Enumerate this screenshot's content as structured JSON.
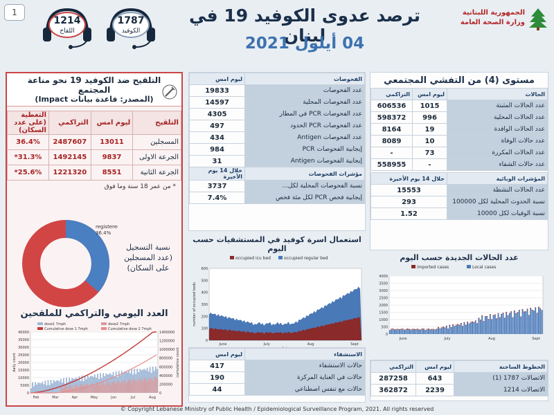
{
  "page_number": "1",
  "header": {
    "title": "ترصد عدوى الكوفيد 19 في لبنان",
    "date": "04 أيلول 2021",
    "gov_line1": "الجمهورية اللبنانية",
    "gov_line2": "وزارة الصحة العامة",
    "hotline_covid": {
      "number": "1787",
      "label": "الكوفيد"
    },
    "hotline_vaccine": {
      "number": "1214",
      "label": "اللقاح"
    }
  },
  "community": {
    "title": "مستوى (4) من التفشي المجتمعي",
    "headers": [
      "الحالات",
      "ليوم امس",
      "التراكمي"
    ],
    "rows": [
      {
        "label": "عدد الحالات المثبتة",
        "yesterday": "1015",
        "cumulative": "606536"
      },
      {
        "label": "عدد الحالات المحلية",
        "yesterday": "996",
        "cumulative": "598372"
      },
      {
        "label": "عدد الحالات الوافدة",
        "yesterday": "19",
        "cumulative": "8164"
      },
      {
        "label": "عدد حالات الوفاة",
        "yesterday": "10",
        "cumulative": "8089"
      },
      {
        "label": "عدد الحالات المكررة",
        "yesterday": "73",
        "cumulative": "-"
      },
      {
        "label": "عدد حالات الشفاء",
        "yesterday": "-",
        "cumulative": "558955"
      }
    ],
    "indicators_header": [
      "المؤشرات الوبائية",
      "خلال 14 يوم الأخيرة"
    ],
    "indicators": [
      {
        "label": "عدد الحالات النشطة",
        "value": "15553"
      },
      {
        "label": "نسبة الحدوث المحلية لكل 100000",
        "value": "293"
      },
      {
        "label": "نسبة الوفيات لكل 10000",
        "value": "1.52"
      }
    ]
  },
  "tests": {
    "headers": [
      "الفحوصات",
      "ليوم امس"
    ],
    "rows": [
      {
        "label": "عدد الفحوصات",
        "value": "19833"
      },
      {
        "label": "عدد الفحوصات المحلية",
        "value": "14597"
      },
      {
        "label": "عدد الفحوصات PCR في المطار",
        "value": "4305"
      },
      {
        "label": "عدد الفحوصات PCR الحدود",
        "value": "497"
      },
      {
        "label": "عدد الفحوصات Antigen",
        "value": "434"
      },
      {
        "label": "إيجابية الفحوصات PCR",
        "value": "984"
      },
      {
        "label": "إيجابية الفحوصات Antigen",
        "value": "31"
      }
    ],
    "indicators_header": [
      "مؤشرات الفحوصات",
      "خلال 14 يوم الأخيرة"
    ],
    "indicators": [
      {
        "label": "نسبة الفحوصات المحلية لكل...",
        "value": "3737"
      },
      {
        "label": "إيجابية فحص PCR لكل مئة فحص",
        "value": "7.4%"
      }
    ]
  },
  "vaccination": {
    "title_line1": "التلقيح ضد الكوفيد 19 نحو مناعة المجتمع",
    "title_line2": "(المصدر: قاعدة بيانات Impact)",
    "headers": [
      "التلقيح",
      "ليوم امس",
      "التراكمي",
      "التغطية (على عدد السكان)"
    ],
    "rows": [
      {
        "label": "المسجلين",
        "yesterday": "13011",
        "cumulative": "2487607",
        "coverage": "36.4%"
      },
      {
        "label": "الجرعة الاولى",
        "yesterday": "9837",
        "cumulative": "1492145",
        "coverage": "*31.3%"
      },
      {
        "label": "الجرعة الثانية",
        "yesterday": "8551",
        "cumulative": "1221320",
        "coverage": "*25.6%"
      }
    ],
    "footnote": "* من عمر 18 سنة وما فوق",
    "donut_label": "registered",
    "donut_value_text": "36.4%",
    "donut_fraction": 0.364,
    "donut_caption": "نسبة التسجيل (عدد المسجلين على السكان)",
    "daily_title": "العدد اليومي والتراكمي للملقحين",
    "daily_legend": [
      "dose1 7mph",
      "dose2 7mph",
      "Cumulative dose 1 7mph",
      "Cumulative dose 2 7mph"
    ],
    "daily_y_label": "daily count",
    "daily_y2_label": "cumulative count",
    "daily_y_ticks": [
      "0",
      "5000",
      "10000",
      "15000",
      "20000",
      "25000",
      "30000",
      "35000",
      "40000"
    ],
    "daily_y2_ticks": [
      "0",
      "200000",
      "400000",
      "600000",
      "800000",
      "1000000",
      "1200000",
      "1400000"
    ],
    "daily_x_ticks": [
      "Feb",
      "Mar",
      "Apr",
      "May",
      "Jun",
      "Jul",
      "Aug"
    ]
  },
  "hospital": {
    "title": "استعمال اسرة كوفيد في المستشفيات حسب اليوم",
    "legend": [
      "occupied icu bed",
      "occupied regular bed"
    ],
    "y_label": "number of occupied beds",
    "x_label": "date",
    "y_ticks": [
      "0",
      "50",
      "100",
      "150",
      "200",
      "250",
      "300",
      "350",
      "400",
      "450",
      "500",
      "550",
      "600"
    ],
    "x_ticks": [
      "June",
      "July",
      "Aug",
      "Sept"
    ],
    "table_headers": [
      "الاستشفاء",
      "ليوم امس"
    ],
    "table_rows": [
      {
        "label": "حالات الاستشفاء",
        "value": "417"
      },
      {
        "label": "حالات في العناية المركزة",
        "value": "190"
      },
      {
        "label": "حالات مع تنفس اصطناعي",
        "value": "44"
      }
    ]
  },
  "new_cases": {
    "title": "عدد الحالات الجديدة حسب اليوم",
    "legend": [
      "imported cases",
      "Local cases"
    ],
    "y_ticks": [
      "0",
      "500",
      "1000",
      "1500",
      "2000",
      "2500",
      "3000",
      "3500",
      "4000"
    ],
    "x_ticks": [
      "June",
      "July",
      "Aug",
      "Sept"
    ]
  },
  "hotlines": {
    "headers": [
      "الخطوط الساخنة",
      "ليوم امس",
      "التراكمي"
    ],
    "rows": [
      {
        "label": "الاتصالات 1787 (1)",
        "yesterday": "643",
        "cumulative": "287258"
      },
      {
        "label": "الاتصالات 1214",
        "yesterday": "2239",
        "cumulative": "362872"
      }
    ]
  },
  "footer": "© Copyright Lebanese Ministry of Public Health / Epidemiological Surveillance Program, 2021. All rights reserved",
  "colors": {
    "accent": "#c94444",
    "blue": "#3d72b0",
    "navy": "#1a2f4a",
    "donut_blue": "#4a7fc1",
    "donut_red": "#d24545"
  }
}
